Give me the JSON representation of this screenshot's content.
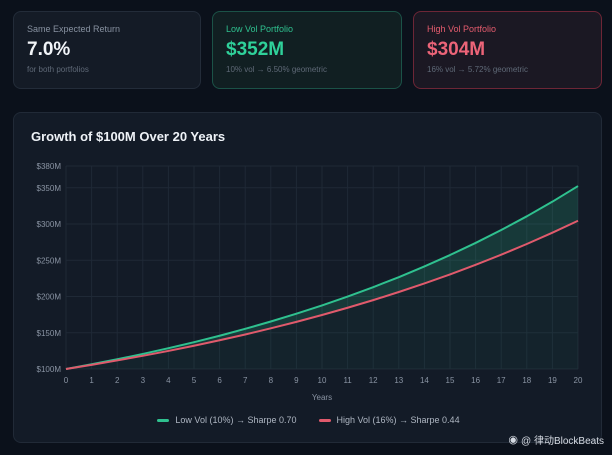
{
  "cards": [
    {
      "label": "Same Expected Return",
      "value": "7.0%",
      "sub": "for both portfolios"
    },
    {
      "label": "Low Vol Portfolio",
      "value": "$352M",
      "sub": "10% vol → 6.50% geometric"
    },
    {
      "label": "High Vol Portfolio",
      "value": "$304M",
      "sub": "16% vol → 5.72% geometric"
    }
  ],
  "chart_data": {
    "type": "line",
    "title": "Growth of $100M Over 20 Years",
    "xlabel": "Years",
    "ylabel": "",
    "x": [
      0,
      1,
      2,
      3,
      4,
      5,
      6,
      7,
      8,
      9,
      10,
      11,
      12,
      13,
      14,
      15,
      16,
      17,
      18,
      19,
      20
    ],
    "xlim": [
      0,
      20
    ],
    "ylim": [
      100,
      380
    ],
    "y_ticks": [
      {
        "value": 100,
        "label": "$100M"
      },
      {
        "value": 150,
        "label": "$150M"
      },
      {
        "value": 200,
        "label": "$200M"
      },
      {
        "value": 250,
        "label": "$250M"
      },
      {
        "value": 300,
        "label": "$300M"
      },
      {
        "value": 350,
        "label": "$350M"
      },
      {
        "value": 380,
        "label": "$380M"
      }
    ],
    "grid": true,
    "legend_position": "bottom-center",
    "series": [
      {
        "name": "Low Vol (10%) → Sharpe 0.70",
        "color": "#2fc18f",
        "values": [
          100,
          106.5,
          113.4,
          120.8,
          128.7,
          137.0,
          145.9,
          155.4,
          165.5,
          176.3,
          187.7,
          199.9,
          212.9,
          226.7,
          241.5,
          257.2,
          273.9,
          291.7,
          310.6,
          330.8,
          352.3
        ]
      },
      {
        "name": "High Vol (16%) → Sharpe 0.44",
        "color": "#e05a6c",
        "values": [
          100,
          105.7,
          111.8,
          118.2,
          124.9,
          132.1,
          139.6,
          147.6,
          156.1,
          165.0,
          174.5,
          184.5,
          195.0,
          206.2,
          218.0,
          230.5,
          243.7,
          257.6,
          272.4,
          288.0,
          304.5
        ]
      }
    ]
  },
  "watermark": {
    "icon": "weibo-icon",
    "text": "@ 律动BlockBeats"
  }
}
